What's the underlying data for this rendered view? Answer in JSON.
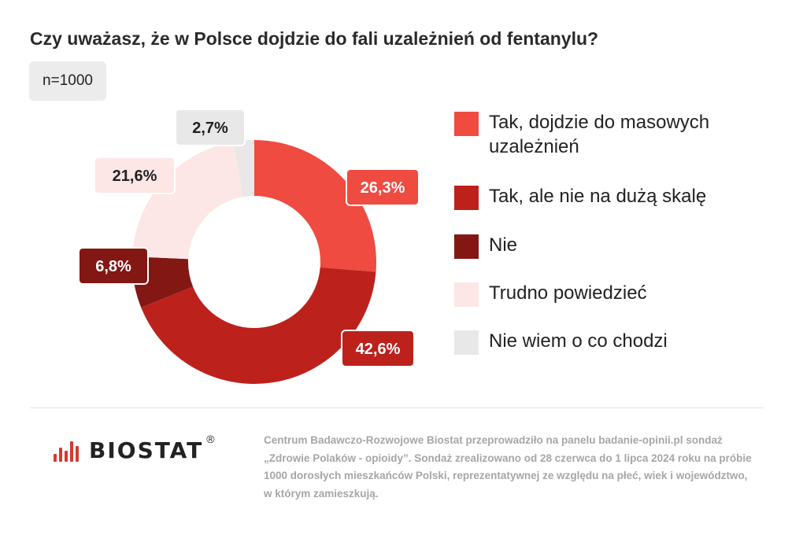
{
  "header": {
    "title": "Czy uważasz, że w Polsce dojdzie do fali uzależnień od fentanylu?",
    "sample": "n=1000"
  },
  "chart_data": {
    "type": "pie",
    "donut": true,
    "title": "Czy uważasz, że w Polsce dojdzie do fali uzależnień od fentanylu?",
    "legend_position": "right",
    "series": [
      {
        "name": "Tak, dojdzie do masowych uzależnień",
        "value": 26.3,
        "label": "26,3%",
        "color": "#ef4b41",
        "label_text_color": "#ffffff"
      },
      {
        "name": "Tak, ale nie na dużą skalę",
        "value": 42.6,
        "label": "42,6%",
        "color": "#bd211c",
        "label_text_color": "#ffffff"
      },
      {
        "name": "Nie",
        "value": 6.8,
        "label": "6,8%",
        "color": "#821714",
        "label_text_color": "#ffffff"
      },
      {
        "name": "Trudno powiedzieć",
        "value": 21.6,
        "label": "21,6%",
        "color": "#fde6e6",
        "label_text_color": "#222222"
      },
      {
        "name": "Nie wiem o co chodzi",
        "value": 2.7,
        "label": "2,7%",
        "color": "#e8e8e8",
        "label_text_color": "#222222"
      }
    ]
  },
  "legend": {
    "items": [
      {
        "lines": [
          "Tak, dojdzie do masowych",
          "uzależnień"
        ],
        "color": "#ef4b41"
      },
      {
        "lines": [
          "Tak, ale nie na dużą skalę"
        ],
        "color": "#bd211c"
      },
      {
        "lines": [
          "Nie"
        ],
        "color": "#821714"
      },
      {
        "lines": [
          "Trudno powiedzieć"
        ],
        "color": "#fde6e6"
      },
      {
        "lines": [
          "Nie wiem o co chodzi"
        ],
        "color": "#e8e8e8"
      }
    ]
  },
  "footer": {
    "logo_text": "BIOSTAT",
    "logo_mark": "®",
    "note_lines": [
      "Centrum Badawczo-Rozwojowe Biostat przeprowadziło na panelu badanie-opinii.pl sondaż",
      "„Zdrowie Polaków - opioidy”. Sondaż zrealizowano od 28 czerwca do 1 lipca 2024 roku na próbie",
      "1000 dorosłych mieszkańców Polski, reprezentatywnej ze względu na płeć, wiek i województwo,",
      "w którym zamieszkują."
    ]
  }
}
